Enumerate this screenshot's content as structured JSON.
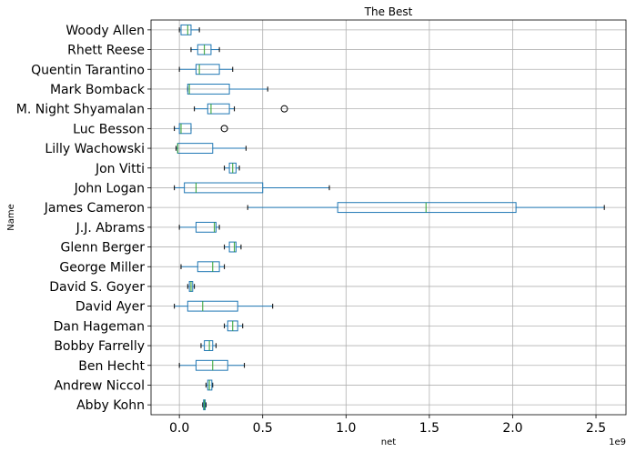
{
  "chart_data": {
    "type": "boxplot",
    "orientation": "horizontal",
    "title": "The Best",
    "xlabel": "net",
    "ylabel": "Name",
    "x_offset_label": "1e9",
    "xlim": [
      -0.17,
      2.68
    ],
    "x_ticks": [
      0.0,
      0.5,
      1.0,
      1.5,
      2.0,
      2.5
    ],
    "x_tick_labels": [
      "0.0",
      "0.5",
      "1.0",
      "1.5",
      "2.0",
      "2.5"
    ],
    "grid": true,
    "colors": {
      "box": "#1f77b4",
      "median": "#2ca02c",
      "whisker": "#1f77b4",
      "cap": "#000000",
      "grid": "#b0b0b0"
    },
    "categories": [
      "Abby Kohn",
      "Andrew Niccol",
      "Ben Hecht",
      "Bobby Farrelly",
      "Dan Hageman",
      "David Ayer",
      "David S. Goyer",
      "George Miller",
      "Glenn Berger",
      "J.J. Abrams",
      "James Cameron",
      "John Logan",
      "Jon Vitti",
      "Lilly Wachowski",
      "Luc Besson",
      "M. Night Shyamalan",
      "Mark Bomback",
      "Quentin Tarantino",
      "Rhett Reese",
      "Woody Allen"
    ],
    "boxes": [
      {
        "whislo": 0.14,
        "q1": 0.145,
        "med": 0.15,
        "q3": 0.155,
        "whishi": 0.16,
        "fliers": []
      },
      {
        "whislo": 0.16,
        "q1": 0.17,
        "med": 0.18,
        "q3": 0.195,
        "whishi": 0.2,
        "fliers": []
      },
      {
        "whislo": 0.0,
        "q1": 0.1,
        "med": 0.2,
        "q3": 0.29,
        "whishi": 0.39,
        "fliers": []
      },
      {
        "whislo": 0.13,
        "q1": 0.15,
        "med": 0.18,
        "q3": 0.2,
        "whishi": 0.22,
        "fliers": []
      },
      {
        "whislo": 0.27,
        "q1": 0.29,
        "med": 0.32,
        "q3": 0.35,
        "whishi": 0.38,
        "fliers": []
      },
      {
        "whislo": -0.03,
        "q1": 0.05,
        "med": 0.14,
        "q3": 0.35,
        "whishi": 0.56,
        "fliers": []
      },
      {
        "whislo": 0.05,
        "q1": 0.06,
        "med": 0.07,
        "q3": 0.08,
        "whishi": 0.09,
        "fliers": []
      },
      {
        "whislo": 0.01,
        "q1": 0.11,
        "med": 0.2,
        "q3": 0.24,
        "whishi": 0.27,
        "fliers": []
      },
      {
        "whislo": 0.27,
        "q1": 0.3,
        "med": 0.33,
        "q3": 0.34,
        "whishi": 0.37,
        "fliers": []
      },
      {
        "whislo": 0.0,
        "q1": 0.1,
        "med": 0.21,
        "q3": 0.22,
        "whishi": 0.24,
        "fliers": []
      },
      {
        "whislo": 0.41,
        "q1": 0.95,
        "med": 1.48,
        "q3": 2.02,
        "whishi": 2.55,
        "fliers": []
      },
      {
        "whislo": -0.03,
        "q1": 0.03,
        "med": 0.1,
        "q3": 0.5,
        "whishi": 0.9,
        "fliers": []
      },
      {
        "whislo": 0.27,
        "q1": 0.3,
        "med": 0.32,
        "q3": 0.34,
        "whishi": 0.36,
        "fliers": []
      },
      {
        "whislo": -0.02,
        "q1": -0.01,
        "med": -0.01,
        "q3": 0.2,
        "whishi": 0.4,
        "fliers": []
      },
      {
        "whislo": -0.03,
        "q1": 0.0,
        "med": 0.01,
        "q3": 0.07,
        "whishi": 0.07,
        "fliers": [
          0.27
        ]
      },
      {
        "whislo": 0.09,
        "q1": 0.17,
        "med": 0.19,
        "q3": 0.3,
        "whishi": 0.33,
        "fliers": [
          0.63
        ]
      },
      {
        "whislo": 0.05,
        "q1": 0.05,
        "med": 0.06,
        "q3": 0.3,
        "whishi": 0.53,
        "fliers": []
      },
      {
        "whislo": 0.0,
        "q1": 0.1,
        "med": 0.12,
        "q3": 0.24,
        "whishi": 0.32,
        "fliers": []
      },
      {
        "whislo": 0.07,
        "q1": 0.11,
        "med": 0.15,
        "q3": 0.19,
        "whishi": 0.24,
        "fliers": []
      },
      {
        "whislo": 0.0,
        "q1": 0.01,
        "med": 0.05,
        "q3": 0.07,
        "whishi": 0.12,
        "fliers": []
      }
    ]
  }
}
